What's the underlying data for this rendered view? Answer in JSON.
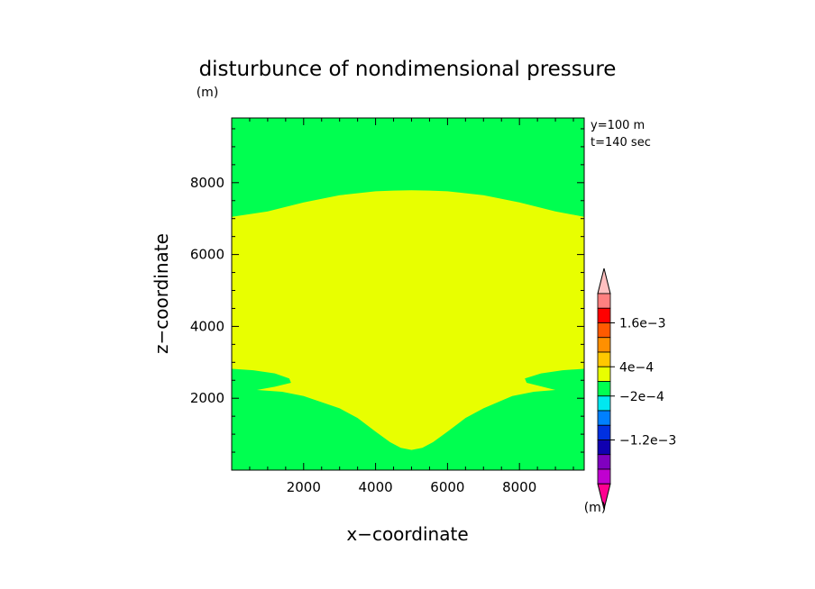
{
  "chart_data": {
    "type": "heatmap",
    "title": "disturbunce of nondimensional pressure",
    "units_label": "(m)",
    "xlabel": "x−coordinate",
    "ylabel": "z−coordinate",
    "xlim": [
      0,
      9800
    ],
    "ylim": [
      0,
      9800
    ],
    "x_ticks": [
      2000,
      4000,
      6000,
      8000
    ],
    "y_ticks": [
      2000,
      4000,
      6000,
      8000
    ],
    "info_lines": [
      "y=100 m",
      "t=140 sec"
    ],
    "background_level_color": "#00ff50",
    "regions": [
      {
        "name": "positive-disturbance",
        "color": "#e8ff00",
        "upper_boundary": {
          "x": [
            0,
            1000,
            2000,
            3000,
            4000,
            4500,
            5000,
            5500,
            6000,
            7000,
            8000,
            9000,
            9800
          ],
          "z": [
            7050,
            7200,
            7450,
            7650,
            7760,
            7780,
            7790,
            7780,
            7760,
            7650,
            7450,
            7200,
            7050
          ]
        },
        "lower_boundary": {
          "x": [
            0,
            600,
            1200,
            1600,
            1650,
            1200,
            700,
            1400,
            2000,
            3000,
            3500,
            4000,
            4400,
            4700,
            5000,
            5300,
            5600,
            6000,
            6500,
            7000,
            7800,
            8400,
            9000,
            8200,
            8150,
            8600,
            9200,
            9800
          ],
          "z": [
            2820,
            2780,
            2690,
            2550,
            2430,
            2320,
            2230,
            2180,
            2060,
            1720,
            1450,
            1070,
            780,
            620,
            560,
            620,
            780,
            1070,
            1450,
            1720,
            2060,
            2180,
            2230,
            2430,
            2550,
            2690,
            2780,
            2820
          ]
        }
      }
    ],
    "colorbar": {
      "colors": [
        "#ff0090",
        "#c000d0",
        "#8000c0",
        "#1000b0",
        "#0030e0",
        "#0080ff",
        "#00e8f0",
        "#00ff50",
        "#e8ff00",
        "#ffc800",
        "#ff9000",
        "#ff5a00",
        "#ff0000",
        "#ff8080",
        "#ffc0c0"
      ],
      "labels": [
        "1.6e−3",
        "4e−4",
        "−2e−4",
        "−1.2e−3"
      ],
      "unit": "(m)"
    }
  }
}
